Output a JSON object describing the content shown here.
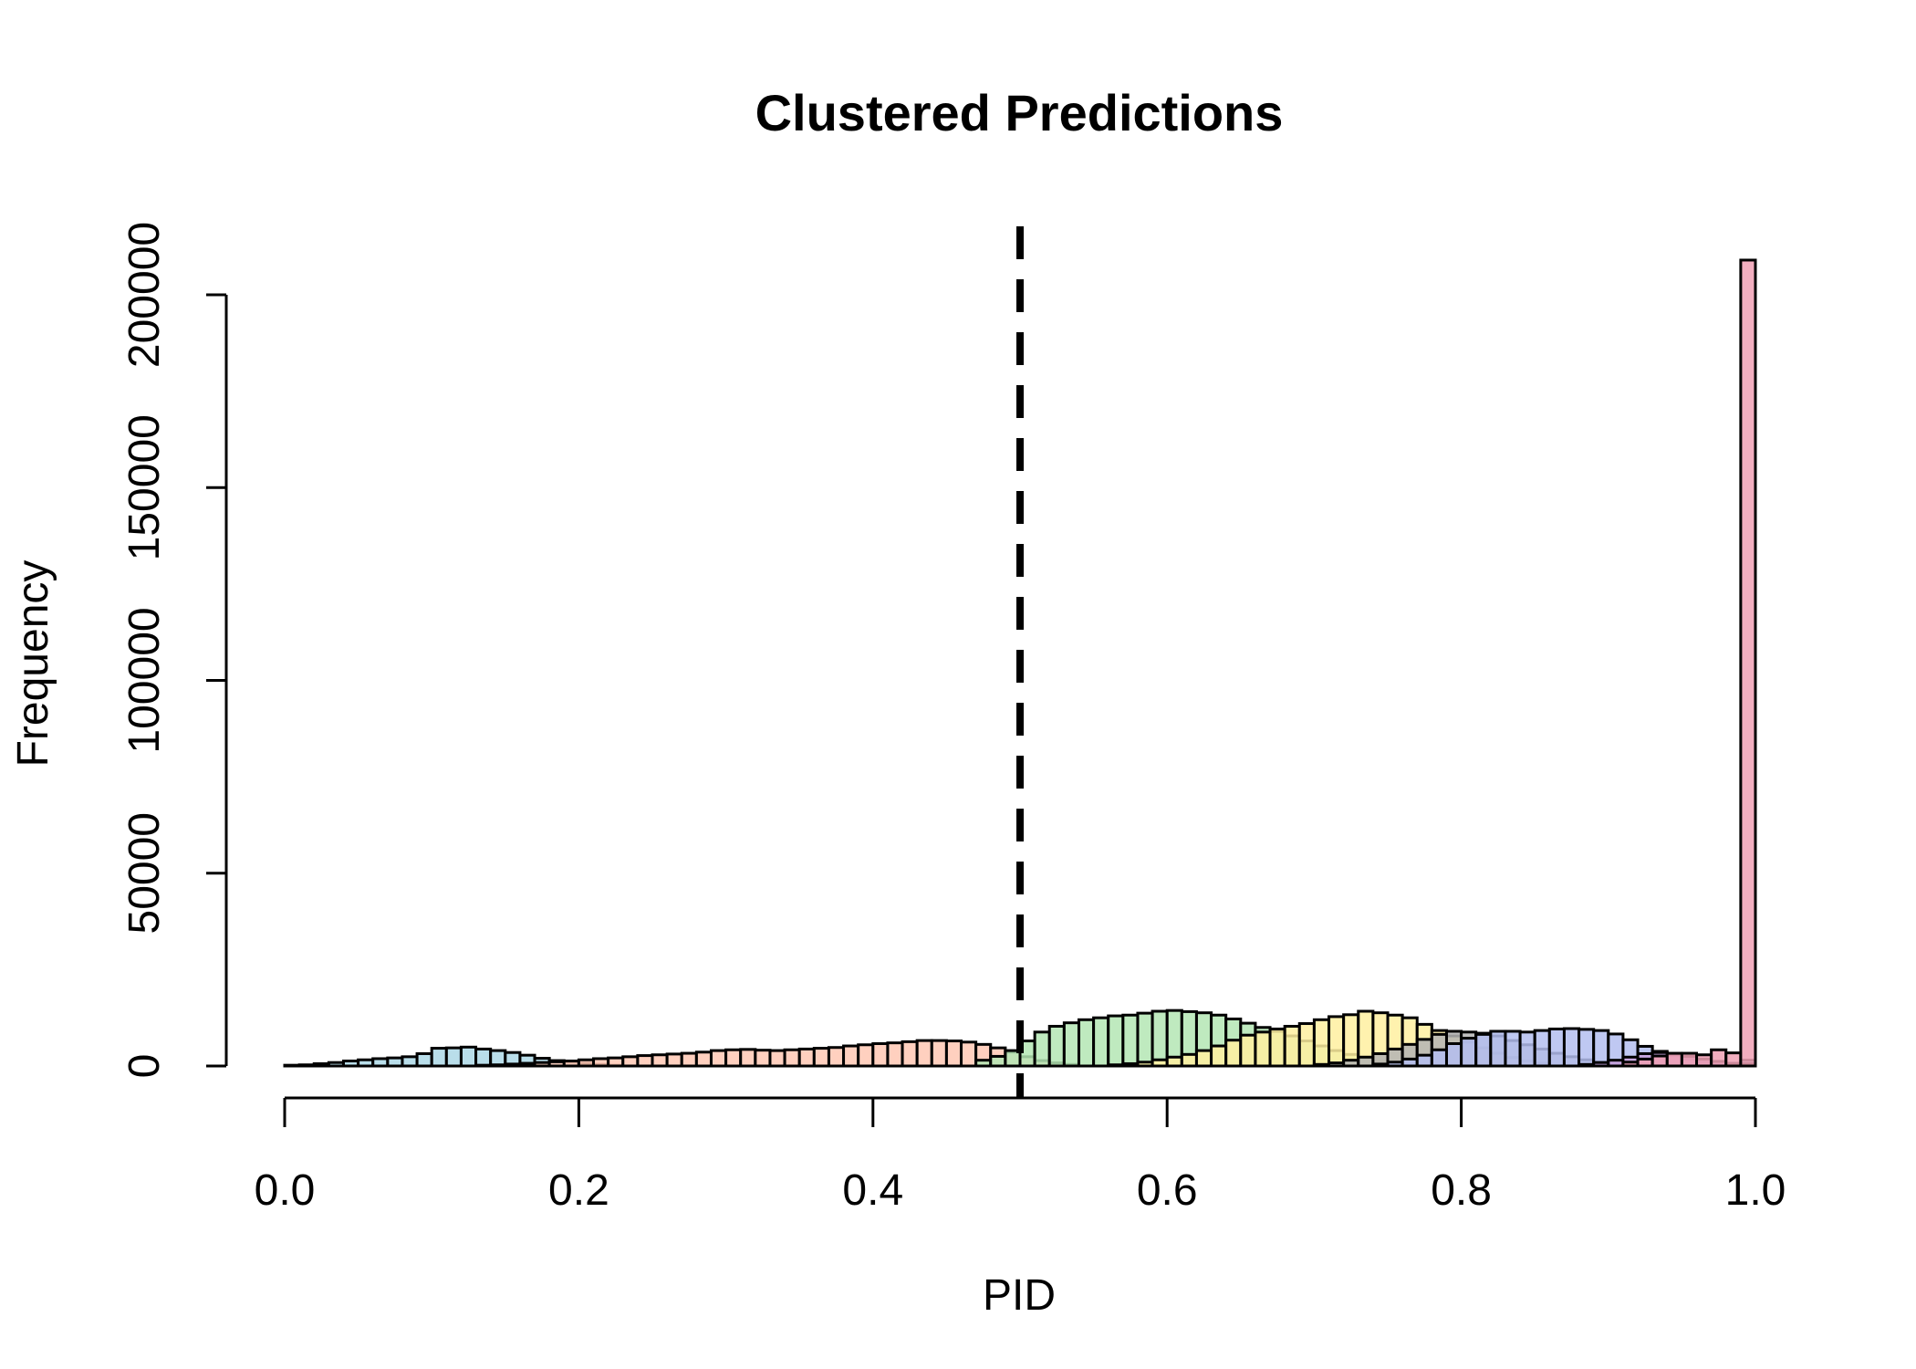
{
  "chart_data": {
    "type": "bar",
    "title": "Clustered Predictions",
    "xlabel": "PID",
    "ylabel": "Frequency",
    "xlim": [
      0,
      1
    ],
    "ylim": [
      0,
      200000
    ],
    "x_ticks": [
      0.0,
      0.2,
      0.4,
      0.6,
      0.8,
      1.0
    ],
    "x_tick_labels": [
      "0.0",
      "0.2",
      "0.4",
      "0.6",
      "0.8",
      "1.0"
    ],
    "y_ticks": [
      0,
      50000,
      100000,
      150000,
      200000
    ],
    "y_tick_labels": [
      "0",
      "50000",
      "100000",
      "150000",
      "200000"
    ],
    "bin_width": 0.01,
    "reference_line": {
      "x": 0.5,
      "style": "dashed"
    },
    "grid": false,
    "legend": "none",
    "series": [
      {
        "color": "#add8e6",
        "bins": [
          [
            0.0,
            0.01,
            200
          ],
          [
            0.01,
            0.02,
            300
          ],
          [
            0.02,
            0.03,
            600
          ],
          [
            0.03,
            0.04,
            900
          ],
          [
            0.04,
            0.05,
            1300
          ],
          [
            0.05,
            0.06,
            1600
          ],
          [
            0.06,
            0.07,
            1900
          ],
          [
            0.07,
            0.08,
            2100
          ],
          [
            0.08,
            0.09,
            2400
          ],
          [
            0.09,
            0.1,
            3200
          ],
          [
            0.1,
            0.11,
            4600
          ],
          [
            0.11,
            0.12,
            4700
          ],
          [
            0.12,
            0.13,
            4900
          ],
          [
            0.13,
            0.14,
            4400
          ],
          [
            0.14,
            0.15,
            4000
          ],
          [
            0.15,
            0.16,
            3500
          ],
          [
            0.16,
            0.17,
            2800
          ],
          [
            0.17,
            0.18,
            2000
          ],
          [
            0.18,
            0.19,
            1400
          ],
          [
            0.19,
            0.2,
            1000
          ],
          [
            0.2,
            0.21,
            700
          ],
          [
            0.21,
            0.22,
            400
          ],
          [
            0.22,
            0.23,
            200
          ]
        ]
      },
      {
        "color": "#ffc8b4",
        "bins": [
          [
            0.13,
            0.14,
            200
          ],
          [
            0.14,
            0.15,
            300
          ],
          [
            0.15,
            0.16,
            500
          ],
          [
            0.16,
            0.17,
            700
          ],
          [
            0.17,
            0.18,
            900
          ],
          [
            0.18,
            0.19,
            1100
          ],
          [
            0.19,
            0.2,
            1300
          ],
          [
            0.2,
            0.21,
            1600
          ],
          [
            0.21,
            0.22,
            1900
          ],
          [
            0.22,
            0.23,
            2100
          ],
          [
            0.23,
            0.24,
            2400
          ],
          [
            0.24,
            0.25,
            2700
          ],
          [
            0.25,
            0.26,
            2900
          ],
          [
            0.26,
            0.27,
            3100
          ],
          [
            0.27,
            0.28,
            3300
          ],
          [
            0.28,
            0.29,
            3600
          ],
          [
            0.29,
            0.3,
            4000
          ],
          [
            0.3,
            0.31,
            4200
          ],
          [
            0.31,
            0.32,
            4300
          ],
          [
            0.32,
            0.33,
            4100
          ],
          [
            0.33,
            0.34,
            4000
          ],
          [
            0.34,
            0.35,
            4200
          ],
          [
            0.35,
            0.36,
            4400
          ],
          [
            0.36,
            0.37,
            4600
          ],
          [
            0.37,
            0.38,
            4800
          ],
          [
            0.38,
            0.39,
            5200
          ],
          [
            0.39,
            0.4,
            5500
          ],
          [
            0.4,
            0.41,
            5800
          ],
          [
            0.41,
            0.42,
            6000
          ],
          [
            0.42,
            0.43,
            6300
          ],
          [
            0.43,
            0.44,
            6600
          ],
          [
            0.44,
            0.45,
            6600
          ],
          [
            0.45,
            0.46,
            6500
          ],
          [
            0.46,
            0.47,
            6200
          ],
          [
            0.47,
            0.48,
            5600
          ],
          [
            0.48,
            0.49,
            4700
          ],
          [
            0.49,
            0.5,
            3600
          ],
          [
            0.5,
            0.51,
            2400
          ],
          [
            0.51,
            0.52,
            1400
          ],
          [
            0.52,
            0.53,
            800
          ],
          [
            0.53,
            0.54,
            400
          ]
        ]
      },
      {
        "color": "#b4e6b4",
        "bins": [
          [
            0.47,
            0.48,
            1500
          ],
          [
            0.48,
            0.49,
            2500
          ],
          [
            0.49,
            0.5,
            4000
          ],
          [
            0.5,
            0.51,
            6500
          ],
          [
            0.51,
            0.52,
            8800
          ],
          [
            0.52,
            0.53,
            10300
          ],
          [
            0.53,
            0.54,
            11200
          ],
          [
            0.54,
            0.55,
            12000
          ],
          [
            0.55,
            0.56,
            12500
          ],
          [
            0.56,
            0.57,
            13000
          ],
          [
            0.57,
            0.58,
            13200
          ],
          [
            0.58,
            0.59,
            13700
          ],
          [
            0.59,
            0.6,
            14200
          ],
          [
            0.6,
            0.61,
            14400
          ],
          [
            0.61,
            0.62,
            14100
          ],
          [
            0.62,
            0.63,
            13800
          ],
          [
            0.63,
            0.64,
            13200
          ],
          [
            0.64,
            0.65,
            12200
          ],
          [
            0.65,
            0.66,
            11100
          ],
          [
            0.66,
            0.67,
            10000
          ],
          [
            0.67,
            0.68,
            9000
          ],
          [
            0.68,
            0.69,
            7800
          ],
          [
            0.69,
            0.7,
            6500
          ],
          [
            0.7,
            0.71,
            5200
          ],
          [
            0.71,
            0.72,
            4000
          ],
          [
            0.72,
            0.73,
            3000
          ],
          [
            0.73,
            0.74,
            2000
          ],
          [
            0.74,
            0.75,
            1200
          ],
          [
            0.75,
            0.76,
            700
          ],
          [
            0.76,
            0.77,
            300
          ]
        ]
      },
      {
        "color": "#fff0a0",
        "bins": [
          [
            0.56,
            0.57,
            300
          ],
          [
            0.57,
            0.58,
            600
          ],
          [
            0.58,
            0.59,
            1000
          ],
          [
            0.59,
            0.6,
            1600
          ],
          [
            0.6,
            0.61,
            2300
          ],
          [
            0.61,
            0.62,
            3000
          ],
          [
            0.62,
            0.63,
            4000
          ],
          [
            0.63,
            0.64,
            5200
          ],
          [
            0.64,
            0.65,
            6700
          ],
          [
            0.65,
            0.66,
            8000
          ],
          [
            0.66,
            0.67,
            8800
          ],
          [
            0.67,
            0.68,
            9600
          ],
          [
            0.68,
            0.69,
            10300
          ],
          [
            0.69,
            0.7,
            11000
          ],
          [
            0.7,
            0.71,
            12000
          ],
          [
            0.71,
            0.72,
            12800
          ],
          [
            0.72,
            0.73,
            13300
          ],
          [
            0.73,
            0.74,
            14200
          ],
          [
            0.74,
            0.75,
            13800
          ],
          [
            0.75,
            0.76,
            13200
          ],
          [
            0.76,
            0.77,
            12500
          ],
          [
            0.77,
            0.78,
            10800
          ],
          [
            0.78,
            0.79,
            9200
          ],
          [
            0.79,
            0.8,
            7800
          ],
          [
            0.8,
            0.81,
            6200
          ],
          [
            0.81,
            0.82,
            4700
          ],
          [
            0.82,
            0.83,
            3300
          ],
          [
            0.83,
            0.84,
            2200
          ],
          [
            0.84,
            0.85,
            1300
          ],
          [
            0.85,
            0.86,
            700
          ]
        ]
      },
      {
        "color": "#b4b4b4",
        "bins": [
          [
            0.7,
            0.71,
            400
          ],
          [
            0.71,
            0.72,
            800
          ],
          [
            0.72,
            0.73,
            1500
          ],
          [
            0.73,
            0.74,
            2300
          ],
          [
            0.74,
            0.75,
            3200
          ],
          [
            0.75,
            0.76,
            4400
          ],
          [
            0.76,
            0.77,
            5600
          ],
          [
            0.77,
            0.78,
            6900
          ],
          [
            0.78,
            0.79,
            8200
          ],
          [
            0.79,
            0.8,
            9000
          ],
          [
            0.8,
            0.81,
            8800
          ],
          [
            0.81,
            0.82,
            8500
          ],
          [
            0.82,
            0.83,
            7800
          ],
          [
            0.83,
            0.84,
            6600
          ],
          [
            0.84,
            0.85,
            5500
          ],
          [
            0.85,
            0.86,
            4400
          ],
          [
            0.86,
            0.87,
            3300
          ],
          [
            0.87,
            0.88,
            2400
          ],
          [
            0.88,
            0.89,
            1600
          ],
          [
            0.89,
            0.9,
            1000
          ],
          [
            0.9,
            0.91,
            500
          ]
        ]
      },
      {
        "color": "#b4bef0",
        "bins": [
          [
            0.74,
            0.75,
            500
          ],
          [
            0.75,
            0.76,
            1000
          ],
          [
            0.76,
            0.77,
            1800
          ],
          [
            0.77,
            0.78,
            2800
          ],
          [
            0.78,
            0.79,
            4200
          ],
          [
            0.79,
            0.8,
            5800
          ],
          [
            0.8,
            0.81,
            7200
          ],
          [
            0.81,
            0.82,
            8200
          ],
          [
            0.82,
            0.83,
            9000
          ],
          [
            0.83,
            0.84,
            9000
          ],
          [
            0.84,
            0.85,
            8800
          ],
          [
            0.85,
            0.86,
            9200
          ],
          [
            0.86,
            0.87,
            9600
          ],
          [
            0.87,
            0.88,
            9700
          ],
          [
            0.88,
            0.89,
            9500
          ],
          [
            0.89,
            0.9,
            9200
          ],
          [
            0.9,
            0.91,
            8300
          ],
          [
            0.91,
            0.92,
            6800
          ],
          [
            0.92,
            0.93,
            5100
          ],
          [
            0.93,
            0.94,
            3800
          ],
          [
            0.94,
            0.95,
            2700
          ],
          [
            0.95,
            0.96,
            1800
          ],
          [
            0.96,
            0.97,
            1100
          ],
          [
            0.97,
            0.98,
            700
          ],
          [
            0.98,
            0.99,
            400
          ],
          [
            0.99,
            1.0,
            1500
          ]
        ]
      },
      {
        "color": "#c8a0dc",
        "bins": [
          [
            0.88,
            0.89,
            400
          ],
          [
            0.89,
            0.9,
            900
          ],
          [
            0.9,
            0.91,
            1500
          ],
          [
            0.91,
            0.92,
            2300
          ],
          [
            0.92,
            0.93,
            3200
          ],
          [
            0.93,
            0.94,
            3500
          ],
          [
            0.94,
            0.95,
            3100
          ],
          [
            0.95,
            0.96,
            2500
          ],
          [
            0.96,
            0.97,
            1800
          ],
          [
            0.97,
            0.98,
            1200
          ],
          [
            0.98,
            0.99,
            700
          ],
          [
            0.99,
            1.0,
            600
          ]
        ]
      },
      {
        "color": "#f0a0b4",
        "bins": [
          [
            0.91,
            0.92,
            1000
          ],
          [
            0.92,
            0.93,
            1800
          ],
          [
            0.93,
            0.94,
            2600
          ],
          [
            0.94,
            0.95,
            3300
          ],
          [
            0.95,
            0.96,
            3300
          ],
          [
            0.96,
            0.97,
            2900
          ],
          [
            0.97,
            0.98,
            4200
          ],
          [
            0.98,
            0.99,
            3400
          ],
          [
            0.99,
            1.0,
            209000
          ]
        ]
      }
    ]
  }
}
